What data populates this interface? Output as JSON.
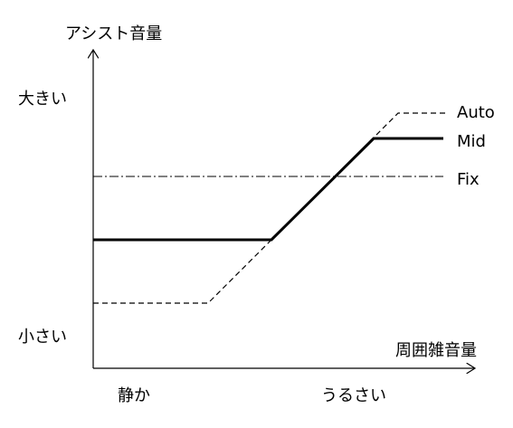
{
  "y_axis_title": "アシスト音量",
  "x_axis_title": "周囲雑音量",
  "y_labels": [
    "大きい",
    "小さい"
  ],
  "x_labels": [
    "静か",
    "うるさい"
  ],
  "lines": [
    {
      "label": "Auto"
    },
    {
      "label": "Mid"
    },
    {
      "label": "Fix"
    }
  ]
}
